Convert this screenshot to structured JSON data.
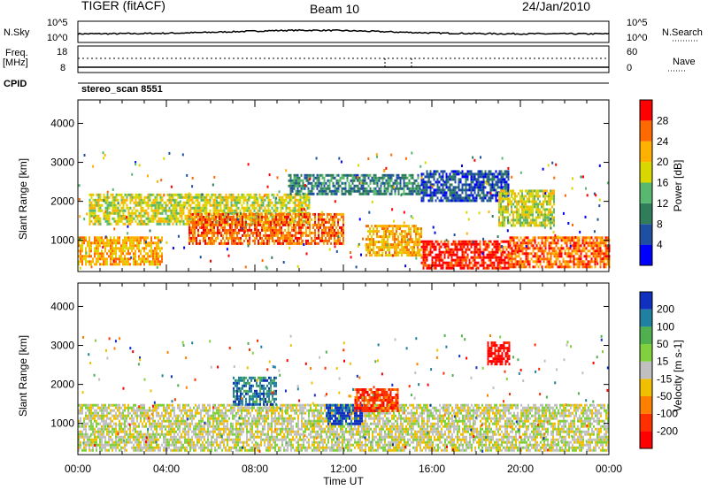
{
  "header": {
    "title": "TIGER (fitACF)",
    "beam": "Beam 10",
    "date": "24/Jan/2010"
  },
  "top_panels": {
    "nsky_label": "N.Sky",
    "nsky_ticks": [
      "10^5",
      "10^0"
    ],
    "nsearch_label": "N.Search",
    "nsearch_ticks": [
      "10^5",
      "10^0"
    ],
    "freq_label_line1": "Freq.",
    "freq_label_line2": "[MHz]",
    "freq_ticks": [
      "18",
      "8"
    ],
    "nave_label": "Nave",
    "nave_ticks": [
      "60",
      "0"
    ],
    "cpid_label": "CPID",
    "cpid_text": "stereo_scan 8551"
  },
  "chart_data": [
    {
      "type": "heatmap",
      "name": "power",
      "ylabel": "Slant Range [km]",
      "xlabel": "",
      "x_ticks": [
        "00:00",
        "04:00",
        "08:00",
        "12:00",
        "16:00",
        "20:00",
        "00:00"
      ],
      "x_range_hours": [
        0,
        24
      ],
      "y_ticks": [
        1000,
        2000,
        3000,
        4000
      ],
      "ylim": [
        200,
        4600
      ],
      "colorbar": {
        "label": "Power [dB]",
        "ticks": [
          "28",
          "24",
          "20",
          "16",
          "12",
          "8",
          "4"
        ],
        "range": [
          0,
          32
        ],
        "colors": [
          "#0000ff",
          "#1f4fa0",
          "#2f7d5a",
          "#59b870",
          "#d8d800",
          "#ffb000",
          "#ff6a00",
          "#ff0000"
        ]
      },
      "echo_regions": [
        {
          "t0": 0.0,
          "t1": 3.8,
          "r0": 400,
          "r1": 1100,
          "power": 20
        },
        {
          "t0": 0.5,
          "t1": 10.5,
          "r0": 1400,
          "r1": 2200,
          "power": 16
        },
        {
          "t0": 5.0,
          "t1": 12.0,
          "r0": 900,
          "r1": 1700,
          "power": 26
        },
        {
          "t0": 13.0,
          "t1": 15.5,
          "r0": 600,
          "r1": 1400,
          "power": 20
        },
        {
          "t0": 15.5,
          "t1": 19.5,
          "r0": 300,
          "r1": 1000,
          "power": 28
        },
        {
          "t0": 19.5,
          "t1": 24.0,
          "r0": 300,
          "r1": 1100,
          "power": 26
        },
        {
          "t0": 9.5,
          "t1": 15.5,
          "r0": 2200,
          "r1": 2700,
          "power": 8
        },
        {
          "t0": 15.5,
          "t1": 19.5,
          "r0": 2000,
          "r1": 2800,
          "power": 6
        },
        {
          "t0": 19.0,
          "t1": 21.5,
          "r0": 1400,
          "r1": 2300,
          "power": 18
        }
      ]
    },
    {
      "type": "heatmap",
      "name": "velocity",
      "ylabel": "Slant Range [km]",
      "xlabel": "Time UT",
      "x_ticks": [
        "00:00",
        "04:00",
        "08:00",
        "12:00",
        "16:00",
        "20:00",
        "00:00"
      ],
      "x_range_hours": [
        0,
        24
      ],
      "y_ticks": [
        1000,
        2000,
        3000,
        4000
      ],
      "ylim": [
        200,
        4600
      ],
      "colorbar": {
        "label": "Velocity [m s-1]",
        "ticks": [
          "200",
          "100",
          "50",
          "15",
          "-15",
          "-50",
          "-100",
          "-200"
        ],
        "colors": [
          "#1030c0",
          "#2080a0",
          "#50b050",
          "#80d040",
          "#c0c0c0",
          "#f0c000",
          "#ff8000",
          "#ff3000",
          "#ff0000"
        ]
      },
      "echo_regions": [
        {
          "t0": 0.0,
          "t1": 24.0,
          "r0": 300,
          "r1": 1500,
          "velocity": 0
        },
        {
          "t0": 11.2,
          "t1": 12.8,
          "r0": 1000,
          "r1": 1500,
          "velocity": 200
        },
        {
          "t0": 12.5,
          "t1": 14.5,
          "r0": 1300,
          "r1": 1900,
          "velocity": -150
        },
        {
          "t0": 18.5,
          "t1": 19.5,
          "r0": 2500,
          "r1": 3100,
          "velocity": -200
        },
        {
          "t0": 7.0,
          "t1": 9.0,
          "r0": 1500,
          "r1": 2200,
          "velocity": 120
        }
      ]
    }
  ]
}
